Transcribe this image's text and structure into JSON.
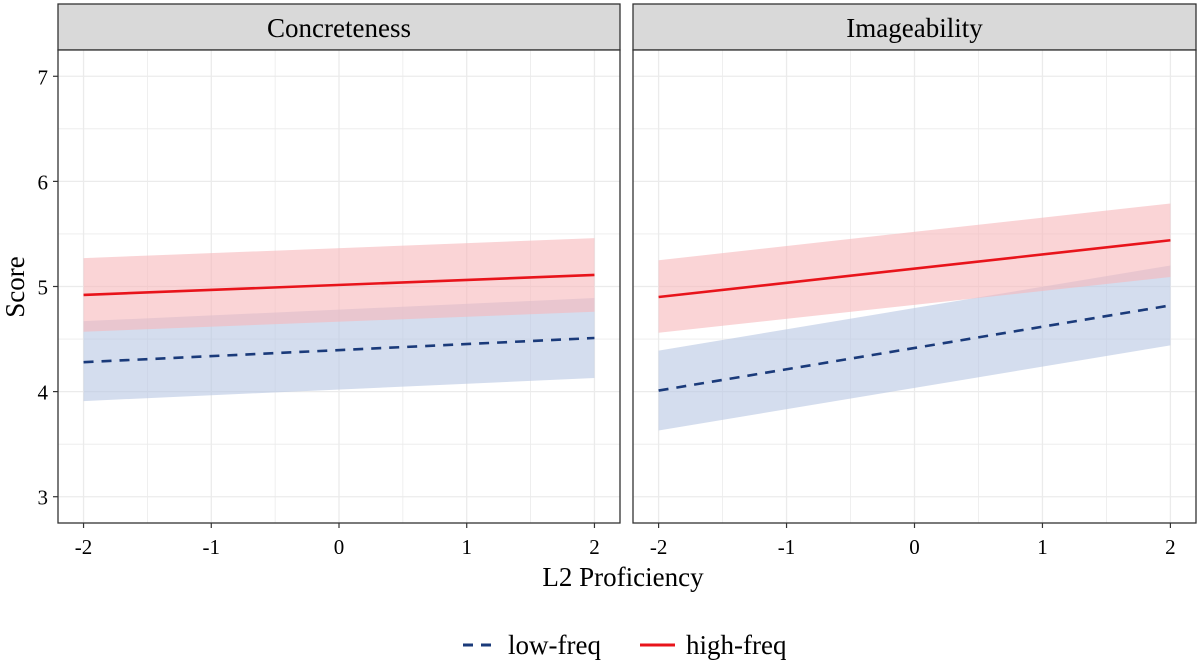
{
  "chart_data": [
    {
      "type": "line",
      "title": "Concreteness",
      "xlabel": "L2 Proficiency",
      "ylabel": "Score",
      "xlim": [
        -2.2,
        2.2
      ],
      "ylim": [
        2.75,
        7.25
      ],
      "xticks": [
        -2,
        -1,
        0,
        1,
        2
      ],
      "yticks": [
        3,
        4,
        5,
        6,
        7
      ],
      "grid": true,
      "x": [
        -2,
        2
      ],
      "series": [
        {
          "name": "low-freq",
          "style": "dashed",
          "color": "#1a3a7a",
          "band_color": "#b7c7e2",
          "values": [
            4.28,
            4.51
          ],
          "lower": [
            3.91,
            4.13
          ],
          "upper": [
            4.67,
            4.89
          ]
        },
        {
          "name": "high-freq",
          "style": "solid",
          "color": "#e8141b",
          "band_color": "#f6b8ba",
          "values": [
            4.92,
            5.11
          ],
          "lower": [
            4.57,
            4.76
          ],
          "upper": [
            5.27,
            5.46
          ]
        }
      ]
    },
    {
      "type": "line",
      "title": "Imageability",
      "xlabel": "L2 Proficiency",
      "ylabel": "Score",
      "xlim": [
        -2.2,
        2.2
      ],
      "ylim": [
        2.75,
        7.25
      ],
      "xticks": [
        -2,
        -1,
        0,
        1,
        2
      ],
      "yticks": [
        3,
        4,
        5,
        6,
        7
      ],
      "grid": true,
      "x": [
        -2,
        2
      ],
      "series": [
        {
          "name": "low-freq",
          "style": "dashed",
          "color": "#1a3a7a",
          "band_color": "#b7c7e2",
          "values": [
            4.01,
            4.82
          ],
          "lower": [
            3.63,
            4.44
          ],
          "upper": [
            4.39,
            5.2
          ]
        },
        {
          "name": "high-freq",
          "style": "solid",
          "color": "#e8141b",
          "band_color": "#f6b8ba",
          "values": [
            4.9,
            5.44
          ],
          "lower": [
            4.56,
            5.09
          ],
          "upper": [
            5.25,
            5.79
          ]
        }
      ]
    }
  ],
  "legend": {
    "position": "bottom",
    "items": [
      "low-freq",
      "high-freq"
    ]
  },
  "axis": {
    "xlabel": "L2 Proficiency",
    "ylabel": "Score"
  }
}
